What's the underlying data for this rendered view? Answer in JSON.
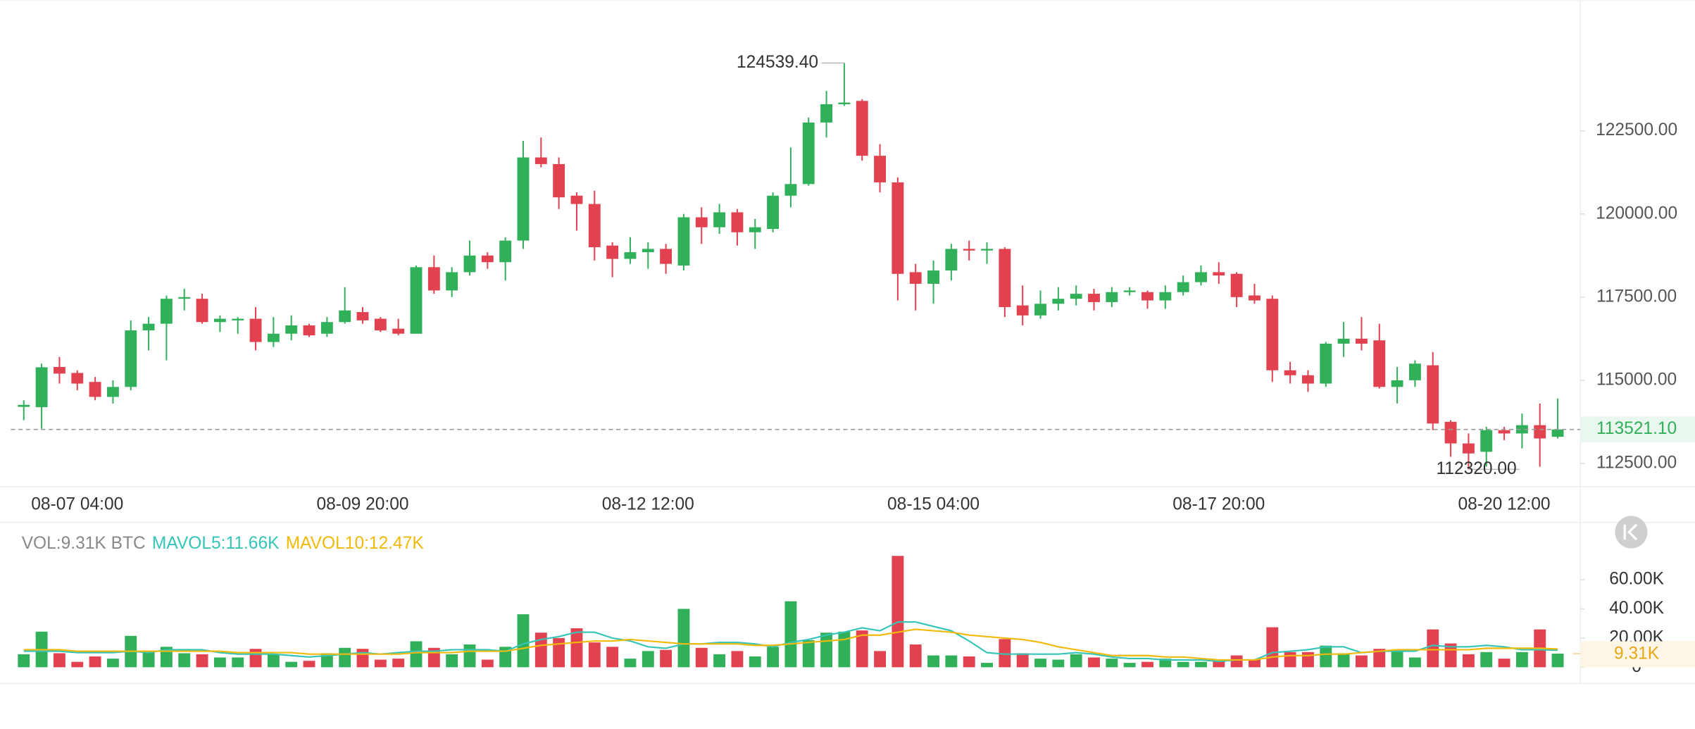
{
  "chart_data": [
    {
      "type": "candlestick",
      "categories": [
        null,
        null,
        null,
        "08-07 04:00",
        null,
        null,
        null,
        null,
        null,
        null,
        null,
        null,
        null,
        null,
        null,
        null,
        null,
        null,
        null,
        "08-09 20:00",
        null,
        null,
        null,
        null,
        null,
        null,
        null,
        null,
        null,
        null,
        null,
        null,
        null,
        null,
        null,
        "08-12 12:00",
        null,
        null,
        null,
        null,
        null,
        null,
        null,
        null,
        null,
        null,
        null,
        null,
        null,
        null,
        null,
        "08-15 04:00",
        null,
        null,
        null,
        null,
        null,
        null,
        null,
        null,
        null,
        null,
        null,
        null,
        null,
        null,
        null,
        "08-17 20:00",
        null,
        null,
        null,
        null,
        null,
        null,
        null,
        null,
        null,
        null,
        null,
        null,
        null,
        null,
        null,
        "08-20 12:00",
        null,
        null,
        null
      ],
      "open": [
        114200,
        114190,
        115400,
        115220,
        114950,
        114500,
        114800,
        116500,
        116700,
        117450,
        117450,
        116750,
        116800,
        116850,
        116150,
        116400,
        116650,
        116400,
        116750,
        117050,
        116850,
        116550,
        116400,
        118400,
        117700,
        118250,
        118750,
        118550,
        119200,
        121700,
        121500,
        120550,
        120300,
        119050,
        118650,
        118850,
        118950,
        118450,
        119900,
        119600,
        120050,
        119450,
        119550,
        120550,
        120900,
        122750,
        123300,
        123400,
        121750,
        120950,
        118250,
        117900,
        118300,
        118950,
        118900,
        118950,
        117250,
        116950,
        117300,
        117450,
        117600,
        117350,
        117650,
        117650,
        117400,
        117650,
        117950,
        118250,
        118200,
        117550,
        117450,
        115300,
        115150,
        114900,
        116100,
        116250,
        116200,
        114800,
        115000,
        115450,
        113750,
        113100,
        112850,
        113500,
        113400,
        113650,
        113300
      ],
      "high": [
        114400,
        115500,
        115700,
        115300,
        115100,
        115000,
        116800,
        116900,
        117550,
        117750,
        117600,
        116950,
        116900,
        117200,
        116900,
        116950,
        116700,
        116900,
        117800,
        117200,
        116900,
        116850,
        118450,
        118750,
        118400,
        119200,
        118850,
        119300,
        122200,
        122300,
        121700,
        120650,
        120700,
        119150,
        119300,
        119150,
        119100,
        120000,
        120200,
        120300,
        120150,
        119850,
        120650,
        122000,
        122900,
        123700,
        124539.4,
        123450,
        122100,
        121100,
        118500,
        118600,
        119100,
        119200,
        119150,
        119000,
        117850,
        117700,
        117800,
        117850,
        117750,
        117800,
        117800,
        117700,
        117850,
        118150,
        118450,
        118550,
        118250,
        117900,
        117550,
        115550,
        115300,
        116150,
        116750,
        116900,
        116700,
        115400,
        115600,
        115850,
        113800,
        113400,
        113600,
        113600,
        114000,
        114300,
        114450
      ],
      "low": [
        113800,
        113540,
        114900,
        114700,
        114400,
        114300,
        114700,
        115900,
        115600,
        117100,
        116700,
        116450,
        116400,
        115900,
        116000,
        116200,
        116300,
        116300,
        116700,
        116700,
        116450,
        116350,
        116400,
        117600,
        117500,
        118150,
        118350,
        118000,
        118950,
        121400,
        120150,
        119500,
        118600,
        118100,
        118500,
        118350,
        118200,
        118300,
        119100,
        119400,
        119050,
        118950,
        119450,
        120200,
        120850,
        122300,
        123250,
        121600,
        120650,
        117400,
        117100,
        117300,
        118000,
        118600,
        118500,
        116900,
        116650,
        116850,
        117100,
        117250,
        117100,
        117200,
        117550,
        117150,
        117150,
        117550,
        117850,
        117900,
        117200,
        117300,
        114950,
        114900,
        114650,
        114800,
        115700,
        115900,
        114750,
        114300,
        114800,
        113500,
        112700,
        112320,
        112400,
        113200,
        112950,
        112400,
        113250
      ],
      "close": [
        114260,
        115390,
        115200,
        114900,
        114500,
        114800,
        116500,
        116700,
        117450,
        117500,
        116750,
        116850,
        116850,
        116150,
        116400,
        116650,
        116350,
        116750,
        117100,
        116800,
        116500,
        116400,
        118400,
        117700,
        118250,
        118750,
        118550,
        119200,
        121700,
        121500,
        120500,
        120300,
        119000,
        118650,
        118850,
        118950,
        118500,
        119900,
        119600,
        120050,
        119450,
        119600,
        120550,
        120900,
        122750,
        123300,
        123350,
        121750,
        120950,
        118200,
        117900,
        118300,
        118950,
        118900,
        118950,
        117200,
        116950,
        117300,
        117450,
        117600,
        117350,
        117650,
        117700,
        117400,
        117650,
        117950,
        118250,
        118150,
        117500,
        117400,
        115300,
        115150,
        114900,
        116100,
        116250,
        116100,
        114800,
        115000,
        115500,
        113700,
        113100,
        112800,
        113500,
        113400,
        113650,
        113250,
        113521.1
      ],
      "up_color": "#31b05a",
      "down_color": "#e2424f",
      "ylim": [
        111800,
        126430
      ],
      "yticks": [
        {
          "value": 112500,
          "label": "112500.00"
        },
        {
          "value": 115000,
          "label": "115000.00"
        },
        {
          "value": 117500,
          "label": "117500.00"
        },
        {
          "value": 120000,
          "label": "120000.00"
        },
        {
          "value": 122500,
          "label": "122500.00"
        }
      ],
      "high_label": {
        "value": 124539.4,
        "label": "124539.40"
      },
      "low_label": {
        "value": 112320,
        "label": "112320.00"
      },
      "last_price": {
        "value": 113521.1,
        "label": "113521.10"
      }
    },
    {
      "type": "bar",
      "series": [
        {
          "name": "VOL:9.31K BTC",
          "color": "#888888",
          "values": [
            8900,
            24400,
            9600,
            3700,
            7400,
            5900,
            21500,
            10400,
            14000,
            9600,
            8900,
            6700,
            6700,
            12600,
            8900,
            3700,
            4400,
            9600,
            13300,
            12600,
            5200,
            5900,
            17800,
            13300,
            8900,
            15600,
            5200,
            14000,
            36300,
            23700,
            20000,
            26700,
            17000,
            14000,
            5900,
            11100,
            11900,
            40000,
            13300,
            8900,
            11100,
            7400,
            14000,
            45200,
            18500,
            23700,
            24400,
            25200,
            11100,
            76300,
            15600,
            8100,
            8100,
            7400,
            3000,
            19300,
            9600,
            5900,
            5200,
            8900,
            6700,
            5900,
            3000,
            3700,
            5900,
            3700,
            3700,
            4400,
            8100,
            5200,
            27400,
            10400,
            10400,
            14800,
            9600,
            8100,
            12600,
            11900,
            6700,
            25900,
            16300,
            8900,
            10400,
            5900,
            10400,
            25900,
            9310
          ]
        },
        {
          "name": "MAVOL5:11.66K",
          "color": "#35c4b8",
          "values": [
            11000,
            11000,
            11000,
            10000,
            10000,
            10000,
            11000,
            10000,
            12000,
            12000,
            12000,
            10000,
            9000,
            9000,
            9000,
            8000,
            7000,
            8000,
            9000,
            10000,
            9000,
            10000,
            11000,
            11000,
            12000,
            12000,
            12000,
            11000,
            16000,
            19000,
            21000,
            24000,
            24000,
            20000,
            18000,
            14000,
            13000,
            16000,
            16000,
            17000,
            17000,
            16000,
            14000,
            17000,
            19000,
            22000,
            24000,
            27000,
            25000,
            31000,
            31000,
            28000,
            25000,
            18000,
            10000,
            9000,
            9000,
            9000,
            9000,
            10000,
            9000,
            7000,
            6000,
            6000,
            5000,
            5000,
            5000,
            4000,
            5000,
            5000,
            10000,
            11000,
            12000,
            14000,
            14000,
            10000,
            11000,
            11000,
            11000,
            15000,
            14000,
            14000,
            15000,
            14000,
            12000,
            12000,
            11660
          ]
        },
        {
          "name": "MAVOL10:12.47K",
          "color": "#f0b90b",
          "values": [
            12000,
            12000,
            12000,
            11000,
            11000,
            11000,
            11000,
            11000,
            11000,
            11000,
            11000,
            11000,
            10000,
            10000,
            10000,
            10000,
            9000,
            9000,
            9000,
            9000,
            9000,
            9000,
            10000,
            10000,
            10000,
            11000,
            11000,
            11000,
            13000,
            15000,
            16000,
            17000,
            18000,
            18000,
            19000,
            18000,
            17000,
            16000,
            16000,
            16000,
            16000,
            15000,
            15000,
            16000,
            17000,
            18000,
            19000,
            22000,
            22000,
            24000,
            26000,
            25000,
            24000,
            22000,
            21000,
            20000,
            19000,
            17000,
            14000,
            12000,
            10000,
            8000,
            8000,
            8000,
            7000,
            7000,
            6000,
            5000,
            5000,
            5000,
            7000,
            8000,
            8000,
            9000,
            9000,
            10000,
            11000,
            12000,
            12000,
            12000,
            12000,
            12000,
            13000,
            13000,
            13000,
            13000,
            12470
          ]
        }
      ],
      "ylim": [
        0,
        97800
      ],
      "yticks": [
        0,
        {
          "value": 20000,
          "label": "20.00K"
        },
        {
          "value": 40000,
          "label": "40.00K"
        },
        {
          "value": 60000,
          "label": "60.00K"
        }
      ],
      "last_volume": {
        "value": 9310,
        "label": "9.31K"
      }
    }
  ]
}
